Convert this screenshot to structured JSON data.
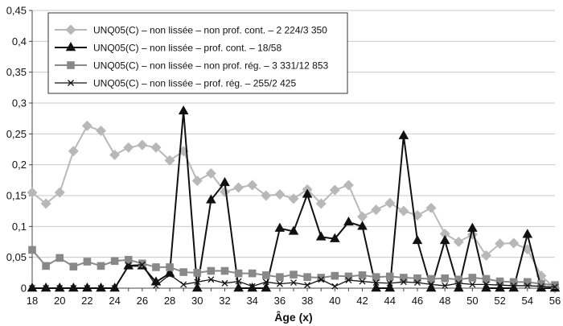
{
  "chart_data": {
    "type": "line",
    "xlabel": "Âge (x)",
    "ylabel": "",
    "title": "",
    "xlim": [
      18,
      56
    ],
    "ylim": [
      0,
      0.45
    ],
    "x_ticks": [
      "18",
      "20",
      "22",
      "24",
      "26",
      "28",
      "30",
      "32",
      "34",
      "36",
      "38",
      "40",
      "42",
      "44",
      "46",
      "48",
      "50",
      "52",
      "54",
      "56"
    ],
    "y_ticks": [
      "0",
      "0,05",
      "0,1",
      "0,15",
      "0,2",
      "0,25",
      "0,3",
      "0,35",
      "0,4",
      "0,45"
    ],
    "grid": "horizontal",
    "legend_position": "top-left",
    "x": [
      18,
      19,
      20,
      21,
      22,
      23,
      24,
      25,
      26,
      27,
      28,
      29,
      30,
      31,
      32,
      33,
      34,
      35,
      36,
      37,
      38,
      39,
      40,
      41,
      42,
      43,
      44,
      45,
      46,
      47,
      48,
      49,
      50,
      51,
      52,
      53,
      54,
      55,
      56
    ],
    "series": [
      {
        "name": "UNQ05(C) – non lissée – non prof. cont. – 2 224/3 350",
        "color": "#b8b8b8",
        "marker": "diamond",
        "values": [
          0.155,
          0.137,
          0.155,
          0.222,
          0.263,
          0.255,
          0.216,
          0.228,
          0.232,
          0.228,
          0.207,
          0.222,
          0.174,
          0.186,
          0.156,
          0.163,
          0.167,
          0.15,
          0.152,
          0.145,
          0.16,
          0.137,
          0.159,
          0.167,
          0.116,
          0.127,
          0.138,
          0.125,
          0.118,
          0.13,
          0.088,
          0.075,
          0.087,
          0.053,
          0.072,
          0.073,
          0.063,
          0.02,
          0.0
        ]
      },
      {
        "name": "UNQ05(C) – non lissée – prof. cont. – 18/58",
        "color": "#111111",
        "marker": "triangle",
        "values": [
          0,
          0,
          0,
          0,
          0,
          0,
          0,
          0.036,
          0.036,
          0.01,
          0.024,
          0.287,
          0.0,
          0.143,
          0.171,
          0.0,
          0.0,
          0.0,
          0.097,
          0.092,
          0.152,
          0.083,
          0.08,
          0.107,
          0.1,
          0.0,
          0.0,
          0.247,
          0.077,
          0.0,
          0.077,
          0.0,
          0.097,
          0.0,
          0.0,
          0.0,
          0.087,
          0.0,
          0.0
        ]
      },
      {
        "name": "UNQ05(C) – non lissée – non prof. rég. – 3 331/12 853",
        "color": "#888888",
        "marker": "square",
        "values": [
          0.062,
          0.036,
          0.049,
          0.035,
          0.043,
          0.036,
          0.044,
          0.046,
          0.04,
          0.034,
          0.034,
          0.026,
          0.025,
          0.028,
          0.028,
          0.024,
          0.024,
          0.021,
          0.018,
          0.022,
          0.018,
          0.017,
          0.02,
          0.019,
          0.021,
          0.018,
          0.019,
          0.017,
          0.016,
          0.015,
          0.016,
          0.014,
          0.017,
          0.015,
          0.011,
          0.01,
          0.01,
          0.007,
          0.005
        ]
      },
      {
        "name": "UNQ05(C) – non lissée – prof. rég. – 255/2 425",
        "color": "#111111",
        "marker": "x",
        "values": [
          0,
          0,
          0,
          0,
          0,
          0,
          0,
          0.037,
          0.038,
          0.004,
          0.022,
          0.006,
          0.01,
          0.014,
          0.008,
          0.011,
          0.003,
          0.01,
          0.007,
          0.009,
          0.005,
          0.014,
          0.003,
          0.013,
          0.011,
          0.009,
          0.008,
          0.01,
          0.009,
          0.006,
          0.004,
          0.008,
          0.006,
          0.006,
          0.005,
          0.004,
          0.004,
          0.003,
          0.002
        ]
      }
    ]
  }
}
